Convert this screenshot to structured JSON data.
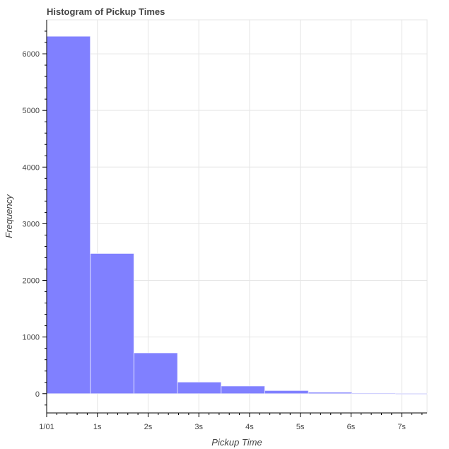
{
  "chart_data": {
    "type": "bar",
    "title": "Histogram of Pickup Times",
    "xlabel": "Pickup Time",
    "ylabel": "Frequency",
    "bar_color": "#8080ff",
    "x_unit": "seconds",
    "xlim": [
      0,
      7.5
    ],
    "ylim": [
      -340,
      6600
    ],
    "grid": true,
    "bins": [
      {
        "start": 0.0,
        "end": 0.86,
        "count": 6310
      },
      {
        "start": 0.86,
        "end": 1.72,
        "count": 2475
      },
      {
        "start": 1.72,
        "end": 2.58,
        "count": 720
      },
      {
        "start": 2.58,
        "end": 3.44,
        "count": 205
      },
      {
        "start": 3.44,
        "end": 4.3,
        "count": 135
      },
      {
        "start": 4.3,
        "end": 5.16,
        "count": 55
      },
      {
        "start": 5.16,
        "end": 6.02,
        "count": 25
      },
      {
        "start": 6.02,
        "end": 6.88,
        "count": 8
      },
      {
        "start": 6.88,
        "end": 7.74,
        "count": 3
      }
    ],
    "x_ticks": [
      {
        "value": 0,
        "label": "1/01"
      },
      {
        "value": 1,
        "label": "1s"
      },
      {
        "value": 2,
        "label": "2s"
      },
      {
        "value": 3,
        "label": "3s"
      },
      {
        "value": 4,
        "label": "4s"
      },
      {
        "value": 5,
        "label": "5s"
      },
      {
        "value": 6,
        "label": "6s"
      },
      {
        "value": 7,
        "label": "7s"
      }
    ],
    "y_ticks": [
      {
        "value": 0,
        "label": "0"
      },
      {
        "value": 1000,
        "label": "1000"
      },
      {
        "value": 2000,
        "label": "2000"
      },
      {
        "value": 3000,
        "label": "3000"
      },
      {
        "value": 4000,
        "label": "4000"
      },
      {
        "value": 5000,
        "label": "5000"
      },
      {
        "value": 6000,
        "label": "6000"
      }
    ]
  }
}
